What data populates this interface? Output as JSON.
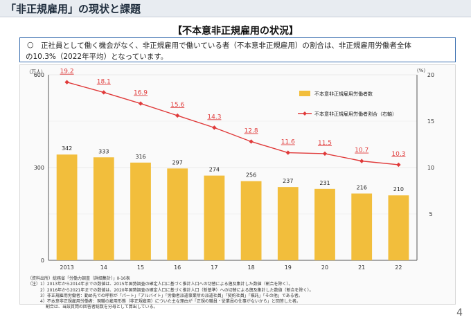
{
  "header": {
    "title": "「非正規雇用」の現状と課題"
  },
  "subtitle": "【不本意非正規雇用の状況】",
  "note": {
    "bullet": "○",
    "line1": "正社員として働く機会がなく、非正規雇用で働いている者（不本意非正規雇用）の割合は、非正規雇用労働者全体",
    "line2": "の10.3%（2022年平均）となっています。"
  },
  "chart_data": {
    "type": "bar",
    "categories": [
      "2013",
      "14",
      "15",
      "16",
      "17",
      "18",
      "19",
      "20",
      "21",
      "22"
    ],
    "series": [
      {
        "name": "不本意非正規雇用労働者数",
        "type": "bar",
        "axis": "left",
        "values": [
          342,
          333,
          316,
          297,
          274,
          256,
          237,
          231,
          216,
          210
        ],
        "color": "#f2be3c"
      },
      {
        "name": "不本意非正規雇用労働者割合（右軸）",
        "type": "line",
        "axis": "right",
        "values": [
          19.2,
          18.1,
          16.9,
          15.6,
          14.3,
          12.8,
          11.6,
          11.5,
          10.7,
          10.3
        ],
        "color": "#e03a3a"
      }
    ],
    "left_axis": {
      "unit": "（万人）",
      "ticks": [
        "0",
        "300",
        "600"
      ],
      "ylim": [
        0,
        600
      ]
    },
    "right_axis": {
      "unit": "（%）",
      "ticks": [
        "5",
        "10",
        "15",
        "20"
      ],
      "ylim": [
        0,
        20
      ]
    },
    "gridlines": true,
    "legend": "top-right"
  },
  "notes": [
    "（資料出所）総務省「労働力調査（詳細集計）」Ⅱ-16表",
    "（注）1）2013年から2014年までの数値は、2015年国勢調査の確定人口に基づく推計人口への切替による遡及集計した数値（割合を除く）。",
    "　　　2）2016年から2021年までの数値は、2020年国勢調査の確定人口に基づく推計人口（新基準）への切替による遡及集計した数値（割合を除く）。",
    "　　　3）非正規雇用労働者：勤め先での呼称が「パート」「アルバイト」「労働者派遣事業所の派遣社員」「契約社員」「嘱託」「その他」である者。",
    "　　　4）不本意非正規雇用労働者：現職の雇用形態（非正規雇用）についた主な理由が「正規の職員・従業員の仕事がないから」と回答した者。",
    "　　　　 割合は、当該質問の回答者総数を分母として算出している。"
  ],
  "page_number": "4"
}
